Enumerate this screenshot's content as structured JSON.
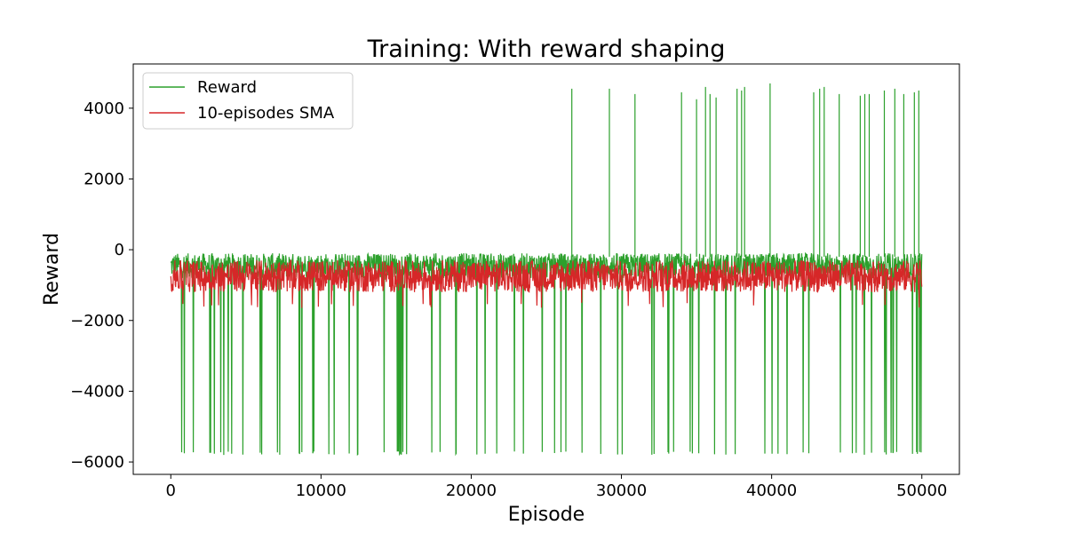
{
  "chart_data": {
    "type": "line",
    "title": "Training: With reward shaping",
    "xlabel": "Episode",
    "ylabel": "Reward",
    "xlim": [
      -2500,
      52500
    ],
    "ylim": [
      -6350,
      5250
    ],
    "x_ticks": [
      0,
      10000,
      20000,
      30000,
      40000,
      50000
    ],
    "x_tick_labels": [
      "0",
      "10000",
      "20000",
      "30000",
      "40000",
      "50000"
    ],
    "y_ticks": [
      -6000,
      -4000,
      -2000,
      0,
      2000,
      4000
    ],
    "y_tick_labels": [
      "−6000",
      "−4000",
      "−2000",
      "0",
      "2000",
      "4000"
    ],
    "grid": false,
    "legend_position": "top-left",
    "episodes": 50000,
    "series": [
      {
        "name": "Reward",
        "color": "#2ca02c",
        "baseline_band": [
          -800,
          -100
        ],
        "low_spike_value": -5700,
        "high_spikes": [
          {
            "x": 26700,
            "y": 4550
          },
          {
            "x": 29200,
            "y": 4550
          },
          {
            "x": 30900,
            "y": 4400
          },
          {
            "x": 34000,
            "y": 4450
          },
          {
            "x": 35000,
            "y": 4250
          },
          {
            "x": 35600,
            "y": 4600
          },
          {
            "x": 35900,
            "y": 4400
          },
          {
            "x": 36300,
            "y": 4300
          },
          {
            "x": 37700,
            "y": 4550
          },
          {
            "x": 38000,
            "y": 4500
          },
          {
            "x": 38200,
            "y": 4600
          },
          {
            "x": 39900,
            "y": 4700
          },
          {
            "x": 42800,
            "y": 4450
          },
          {
            "x": 43200,
            "y": 4550
          },
          {
            "x": 43500,
            "y": 4600
          },
          {
            "x": 44500,
            "y": 4400
          },
          {
            "x": 45900,
            "y": 4350
          },
          {
            "x": 46200,
            "y": 4400
          },
          {
            "x": 46500,
            "y": 4400
          },
          {
            "x": 47500,
            "y": 4500
          },
          {
            "x": 48200,
            "y": 4550
          },
          {
            "x": 48800,
            "y": 4400
          },
          {
            "x": 49500,
            "y": 4450
          },
          {
            "x": 49800,
            "y": 4500
          }
        ]
      },
      {
        "name": "10-episodes SMA",
        "color": "#d62728",
        "baseline_band": [
          -1200,
          -300
        ]
      }
    ]
  }
}
